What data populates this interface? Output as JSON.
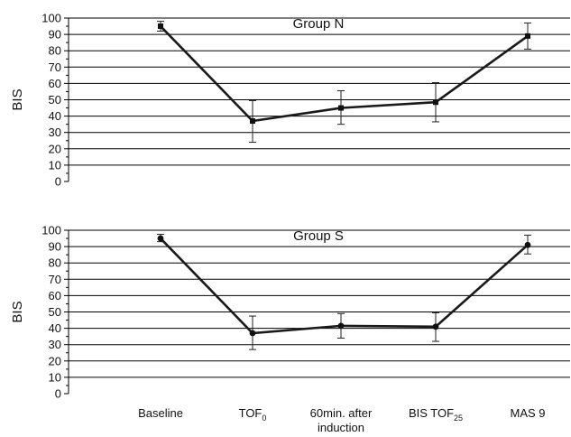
{
  "chart_data": [
    {
      "type": "line",
      "title": "Group N",
      "ylabel": "BIS",
      "xlabel": "",
      "ylim": [
        0,
        100
      ],
      "yticks": [
        0,
        10,
        20,
        30,
        40,
        50,
        60,
        70,
        80,
        90,
        100
      ],
      "grid": true,
      "marker": "square",
      "categories": [
        "Baseline",
        "TOF0",
        "60min. after induction",
        "BIS TOF25",
        "MAS 9"
      ],
      "values": [
        95,
        37,
        45,
        48.5,
        89
      ],
      "error_low": [
        92,
        24,
        35,
        36.5,
        81
      ],
      "error_high": [
        98,
        49.5,
        55.5,
        60.5,
        97
      ]
    },
    {
      "type": "line",
      "title": "Group S",
      "ylabel": "BIS",
      "xlabel": "",
      "ylim": [
        0,
        100
      ],
      "yticks": [
        0,
        10,
        20,
        30,
        40,
        50,
        60,
        70,
        80,
        90,
        100
      ],
      "grid": true,
      "marker": "circle",
      "categories": [
        "Baseline",
        "TOF0",
        "60min. after induction",
        "BIS TOF25",
        "MAS 9"
      ],
      "values": [
        95,
        37,
        41.5,
        41,
        91
      ],
      "error_low": [
        93,
        27,
        34,
        32,
        85.5
      ],
      "error_high": [
        97.5,
        47.5,
        49,
        49.5,
        97
      ]
    }
  ],
  "x_axis_labels": [
    {
      "main": "Baseline",
      "sub": ""
    },
    {
      "main": "TOF",
      "sub": "0"
    },
    {
      "main": "60min. after",
      "line2": "induction",
      "sub": ""
    },
    {
      "main": "BIS TOF",
      "sub": "25"
    },
    {
      "main": "MAS 9",
      "sub": ""
    }
  ]
}
